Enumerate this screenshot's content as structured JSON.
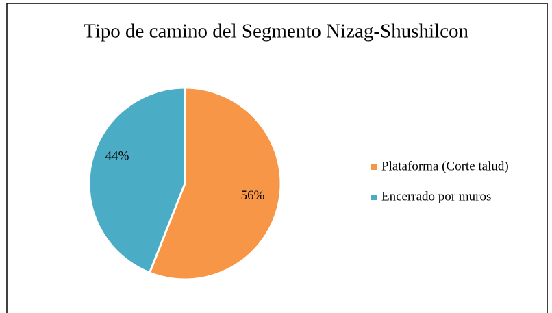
{
  "chart_data": {
    "type": "pie",
    "title": "Tipo de camino del Segmento Nizag-Shushilcon",
    "categories": [
      "Plataforma (Corte talud)",
      "Encerrado por muros"
    ],
    "values": [
      56,
      44
    ],
    "value_labels": [
      "56%",
      "44%"
    ],
    "colors": [
      "#f79646",
      "#4bacc6"
    ],
    "legend": "right"
  }
}
